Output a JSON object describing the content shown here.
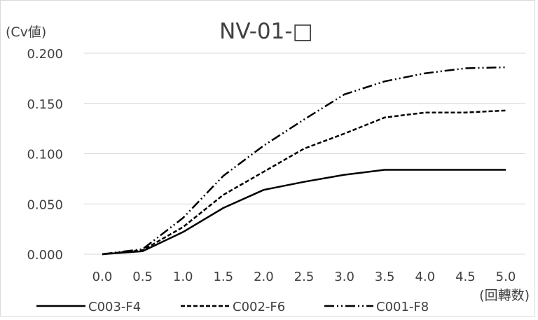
{
  "chart_data": {
    "type": "line",
    "title": "NV-01-□",
    "ylabel": "(Cv値)",
    "xlabel": "(回轉数)",
    "x": [
      0.0,
      0.5,
      1.0,
      1.5,
      2.0,
      2.5,
      3.0,
      3.5,
      4.0,
      4.5,
      5.0
    ],
    "x_tick_labels": [
      "0.0",
      "0.5",
      "1.0",
      "1.5",
      "2.0",
      "2.5",
      "3.0",
      "3.5",
      "4.0",
      "4.5",
      "5.0"
    ],
    "ylim": [
      0,
      0.2
    ],
    "y_ticks": [
      0.0,
      0.05,
      0.1,
      0.15,
      0.2
    ],
    "y_tick_labels": [
      "0.000",
      "0.050",
      "0.100",
      "0.150",
      "0.200"
    ],
    "grid": true,
    "legend_position": "bottom",
    "series": [
      {
        "name": "C003-F4",
        "line_style": "solid",
        "color": "#000000",
        "values": [
          0.0,
          0.003,
          0.022,
          0.046,
          0.064,
          0.072,
          0.079,
          0.084,
          0.084,
          0.084,
          0.084
        ]
      },
      {
        "name": "C002-F6",
        "line_style": "dashed",
        "color": "#000000",
        "values": [
          0.0,
          0.004,
          0.027,
          0.059,
          0.082,
          0.105,
          0.12,
          0.136,
          0.141,
          0.141,
          0.143
        ]
      },
      {
        "name": "C001-F8",
        "line_style": "dash-dot-dot",
        "color": "#000000",
        "values": [
          0.0,
          0.005,
          0.036,
          0.078,
          0.108,
          0.134,
          0.159,
          0.172,
          0.18,
          0.185,
          0.186
        ]
      }
    ]
  }
}
